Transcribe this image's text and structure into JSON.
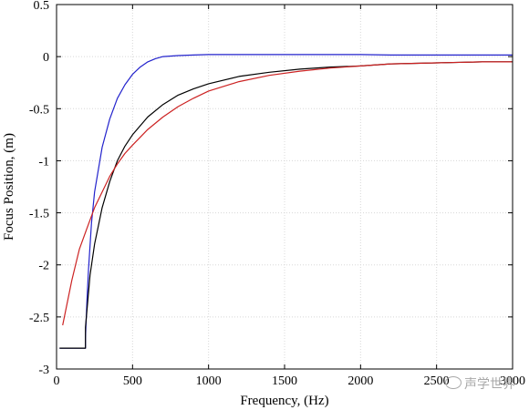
{
  "chart_data": {
    "type": "line",
    "xlabel": "Frequency, (Hz)",
    "ylabel": "Focus Position, (m)",
    "xlim": [
      0,
      3000
    ],
    "ylim": [
      -3,
      0.5
    ],
    "xticks": [
      0,
      500,
      1000,
      1500,
      2000,
      2500,
      3000
    ],
    "yticks": [
      0.5,
      0,
      -0.5,
      -1,
      -1.5,
      -2,
      -2.5,
      -3
    ],
    "xtick_labels": [
      "0",
      "500",
      "1000",
      "1500",
      "2000",
      "2500",
      "3000"
    ],
    "ytick_labels": [
      "0.5",
      "0",
      "-0.5",
      "-1",
      "-1.5",
      "-2",
      "-2.5",
      "-3"
    ],
    "grid": true,
    "series": [
      {
        "color": "#2222cc",
        "x": [
          20,
          190,
          190,
          200,
          210,
          230,
          250,
          300,
          350,
          400,
          450,
          500,
          550,
          600,
          650,
          700,
          800,
          900,
          1000,
          1200,
          1500,
          1800,
          2000,
          2200,
          2500,
          2800,
          3000
        ],
        "y": [
          -2.8,
          -2.8,
          -2.7,
          -2.35,
          -2.05,
          -1.6,
          -1.3,
          -0.87,
          -0.6,
          -0.4,
          -0.27,
          -0.17,
          -0.1,
          -0.05,
          -0.02,
          0.0,
          0.01,
          0.015,
          0.02,
          0.02,
          0.02,
          0.02,
          0.02,
          0.015,
          0.015,
          0.015,
          0.015
        ]
      },
      {
        "color": "#000000",
        "x": [
          20,
          190,
          190,
          220,
          250,
          300,
          350,
          400,
          450,
          500,
          600,
          700,
          800,
          900,
          1000,
          1200,
          1400,
          1600,
          1800,
          2000,
          2200,
          2500,
          2800,
          3000
        ],
        "y": [
          -2.8,
          -2.8,
          -2.6,
          -2.1,
          -1.8,
          -1.45,
          -1.2,
          -1.0,
          -0.86,
          -0.75,
          -0.58,
          -0.46,
          -0.37,
          -0.31,
          -0.26,
          -0.19,
          -0.15,
          -0.12,
          -0.1,
          -0.09,
          -0.07,
          -0.06,
          -0.05,
          -0.05
        ]
      },
      {
        "color": "#cc2222",
        "x": [
          40,
          100,
          150,
          200,
          250,
          300,
          350,
          400,
          450,
          500,
          600,
          700,
          800,
          900,
          1000,
          1200,
          1400,
          1600,
          1800,
          2000,
          2200,
          2500,
          2800,
          3000
        ],
        "y": [
          -2.58,
          -2.15,
          -1.85,
          -1.65,
          -1.45,
          -1.3,
          -1.15,
          -1.03,
          -0.93,
          -0.85,
          -0.7,
          -0.58,
          -0.48,
          -0.4,
          -0.33,
          -0.24,
          -0.18,
          -0.14,
          -0.11,
          -0.09,
          -0.07,
          -0.06,
          -0.05,
          -0.05
        ]
      }
    ]
  },
  "watermark": {
    "text": "声学世界"
  }
}
